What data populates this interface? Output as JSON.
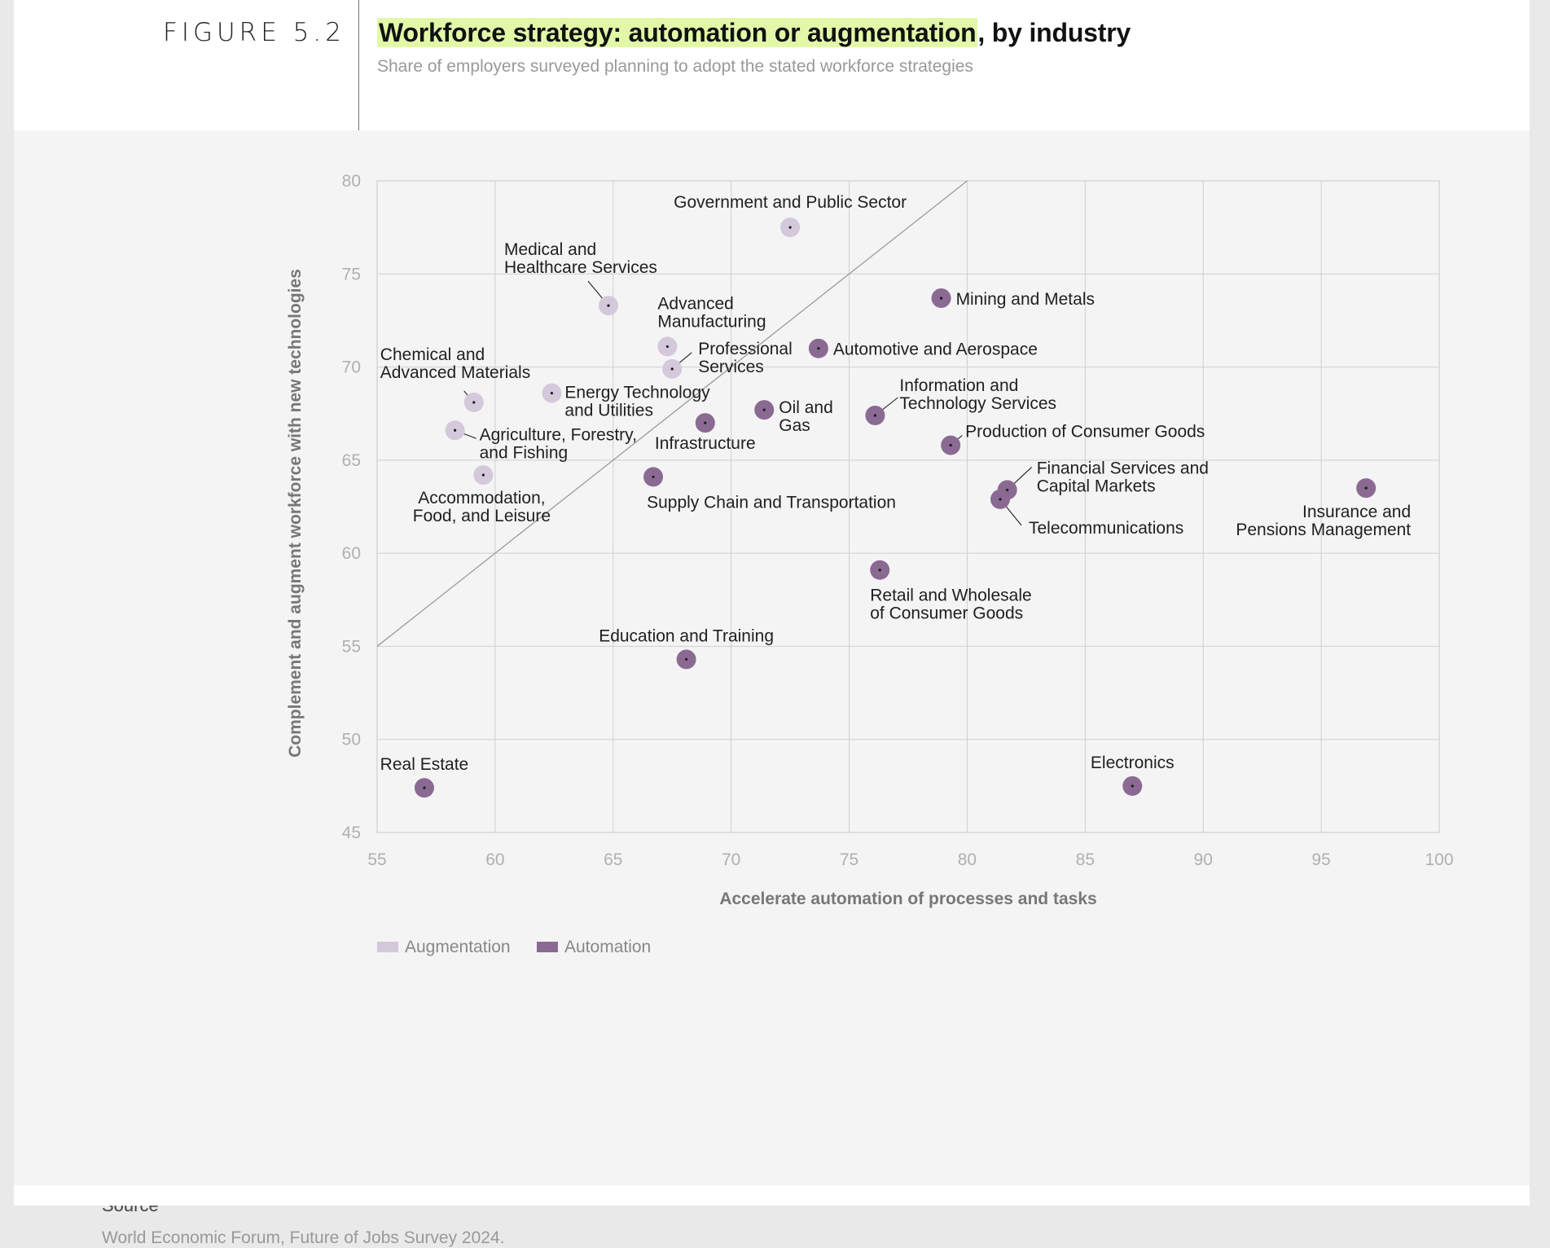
{
  "figure_label": "FIGURE 5.2",
  "title_highlight": "Workforce strategy: automation or augmentation",
  "title_rest": ", by industry",
  "subtitle": "Share of employers surveyed planning to adopt the stated workforce strategies",
  "source_heading": "Source",
  "source_text": "World Economic Forum, Future of Jobs Survey 2024.",
  "colors": {
    "augmentation": "#d4c8db",
    "automation": "#8a6a93",
    "highlight": "#e2f8a8"
  },
  "chart_data": {
    "type": "scatter",
    "xlabel": "Accelerate automation of processes and tasks",
    "ylabel": "Complement and augment workforce with new technologies",
    "xlim": [
      55,
      100
    ],
    "ylim": [
      45,
      80
    ],
    "xticks": [
      55,
      60,
      65,
      70,
      75,
      80,
      85,
      90,
      95,
      100
    ],
    "yticks": [
      45,
      50,
      55,
      60,
      65,
      70,
      75,
      80
    ],
    "grid": true,
    "diagonal_reference_line": true,
    "legend": [
      {
        "name": "Augmentation",
        "group": "augmentation"
      },
      {
        "name": "Automation",
        "group": "automation"
      }
    ],
    "legend_placement": "bottom-left",
    "points": [
      {
        "label": [
          "Government and Public Sector"
        ],
        "x": 72.5,
        "y": 77.5,
        "group": "augmentation"
      },
      {
        "label": [
          "Medical and",
          "Healthcare Services"
        ],
        "x": 64.8,
        "y": 73.3,
        "group": "augmentation"
      },
      {
        "label": [
          "Advanced",
          "Manufacturing"
        ],
        "x": 67.3,
        "y": 71.1,
        "group": "augmentation"
      },
      {
        "label": [
          "Professional",
          "Services"
        ],
        "x": 67.5,
        "y": 69.9,
        "group": "augmentation"
      },
      {
        "label": [
          "Chemical and",
          "Advanced Materials"
        ],
        "x": 59.1,
        "y": 68.1,
        "group": "augmentation"
      },
      {
        "label": [
          "Energy Technology",
          "and Utilities"
        ],
        "x": 62.4,
        "y": 68.6,
        "group": "augmentation"
      },
      {
        "label": [
          "Agriculture, Forestry,",
          "and Fishing"
        ],
        "x": 58.3,
        "y": 66.6,
        "group": "augmentation"
      },
      {
        "label": [
          "Accommodation,",
          "Food, and Leisure"
        ],
        "x": 59.5,
        "y": 64.2,
        "group": "augmentation"
      },
      {
        "label": [
          "Mining and Metals"
        ],
        "x": 78.9,
        "y": 73.7,
        "group": "automation"
      },
      {
        "label": [
          "Automotive and Aerospace"
        ],
        "x": 73.7,
        "y": 71.0,
        "group": "automation"
      },
      {
        "label": [
          "Information and",
          "Technology Services"
        ],
        "x": 76.1,
        "y": 67.4,
        "group": "automation"
      },
      {
        "label": [
          "Oil and",
          "Gas"
        ],
        "x": 71.4,
        "y": 67.7,
        "group": "automation"
      },
      {
        "label": [
          "Infrastructure"
        ],
        "x": 68.9,
        "y": 67.0,
        "group": "automation"
      },
      {
        "label": [
          "Production of Consumer Goods"
        ],
        "x": 79.3,
        "y": 65.8,
        "group": "automation"
      },
      {
        "label": [
          "Supply Chain and Transportation"
        ],
        "x": 66.7,
        "y": 64.1,
        "group": "automation"
      },
      {
        "label": [
          "Financial Services and",
          "Capital Markets"
        ],
        "x": 81.7,
        "y": 63.4,
        "group": "automation"
      },
      {
        "label": [
          "Telecommunications"
        ],
        "x": 81.4,
        "y": 62.9,
        "group": "automation"
      },
      {
        "label": [
          "Insurance and",
          "Pensions Management"
        ],
        "x": 96.9,
        "y": 63.5,
        "group": "automation"
      },
      {
        "label": [
          "Retail and Wholesale",
          "of Consumer Goods"
        ],
        "x": 76.3,
        "y": 59.1,
        "group": "automation"
      },
      {
        "label": [
          "Education and Training"
        ],
        "x": 68.1,
        "y": 54.3,
        "group": "automation"
      },
      {
        "label": [
          "Real Estate"
        ],
        "x": 57.0,
        "y": 47.4,
        "group": "automation"
      },
      {
        "label": [
          "Electronics"
        ],
        "x": 87.0,
        "y": 47.5,
        "group": "automation"
      }
    ]
  }
}
